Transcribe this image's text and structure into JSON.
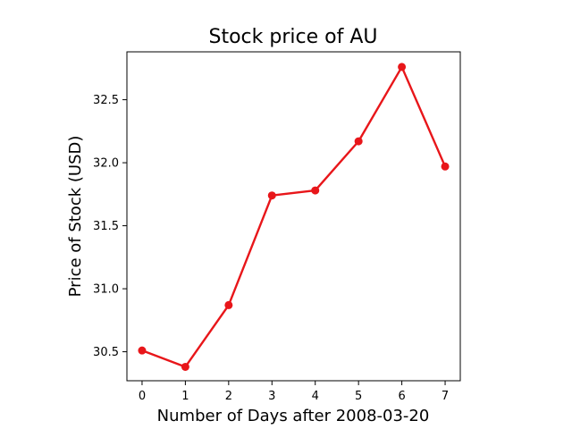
{
  "chart_data": {
    "type": "line",
    "title": "Stock price of AU",
    "xlabel": "Number of Days after 2008-03-20",
    "ylabel": "Price of Stock (USD)",
    "x": [
      0,
      1,
      2,
      3,
      4,
      5,
      6,
      7
    ],
    "x_tick_labels": [
      "0",
      "1",
      "2",
      "3",
      "4",
      "5",
      "6",
      "7"
    ],
    "series": [
      {
        "values": [
          30.51,
          30.38,
          30.87,
          31.74,
          31.78,
          32.17,
          32.76,
          31.97
        ],
        "color": "#e8161a"
      }
    ],
    "y_ticks": [
      30.5,
      31.0,
      31.5,
      32.0,
      32.5
    ],
    "y_tick_labels": [
      "30.5",
      "31.0",
      "31.5",
      "32.0",
      "32.5"
    ],
    "xlim": [
      -0.35,
      7.35
    ],
    "ylim": [
      30.27,
      32.88
    ],
    "grid": false,
    "legend": "none",
    "marker": "circle"
  }
}
